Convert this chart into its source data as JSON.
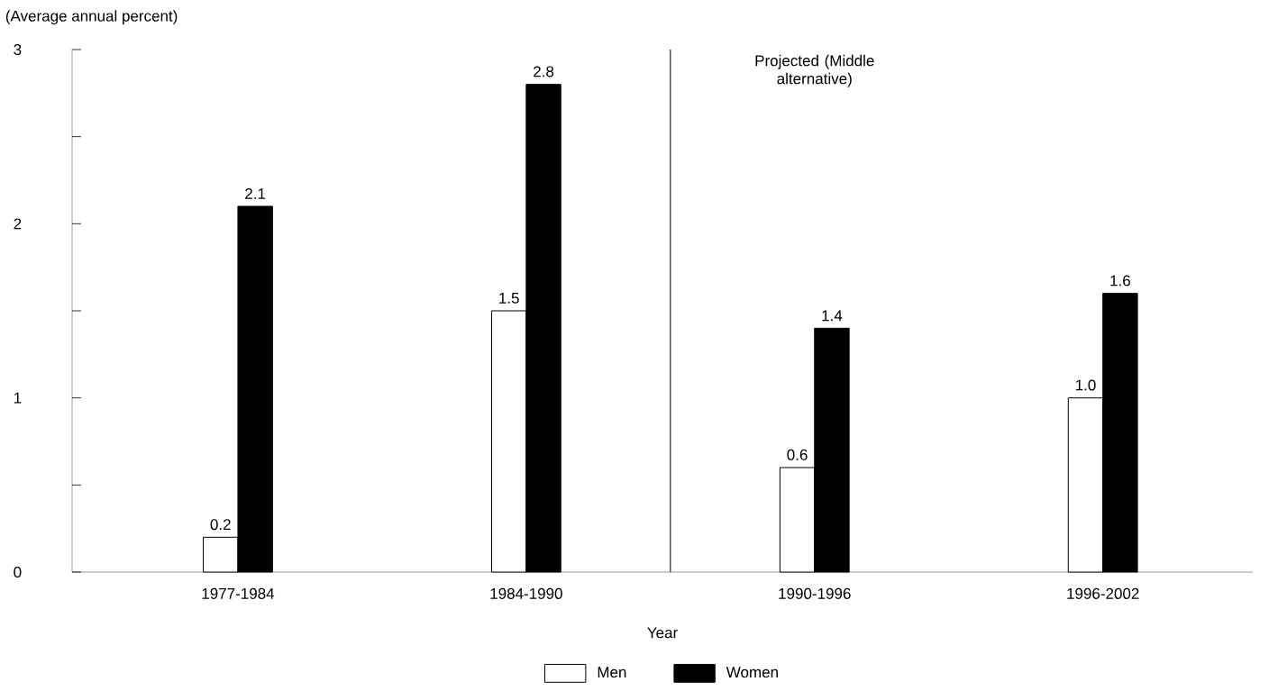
{
  "chart_data": {
    "type": "bar",
    "ylabel": "(Average annual percent)",
    "xlabel": "Year",
    "categories": [
      "1977-1984",
      "1984-1990",
      "1990-1996",
      "1996-2002"
    ],
    "series": [
      {
        "name": "Men",
        "color": "#ffffff",
        "values": [
          0.2,
          1.5,
          0.6,
          1.0
        ],
        "value_labels": [
          "0.2",
          "1.5",
          "0.6",
          "1.0"
        ]
      },
      {
        "name": "Women",
        "color": "#000000",
        "values": [
          2.1,
          2.8,
          1.4,
          1.6
        ],
        "value_labels": [
          "2.1",
          "2.8",
          "1.4",
          "1.6"
        ]
      }
    ],
    "ylim": [
      0,
      3
    ],
    "yticks": [
      0,
      {
        "value": 0.5,
        "label": null
      },
      1,
      {
        "value": 1.5,
        "label": null
      },
      2,
      {
        "value": 2.5,
        "label": null
      },
      3
    ],
    "annotations": [
      "Projected (Middle alternative)"
    ],
    "grid": false,
    "legend": "bottom"
  }
}
